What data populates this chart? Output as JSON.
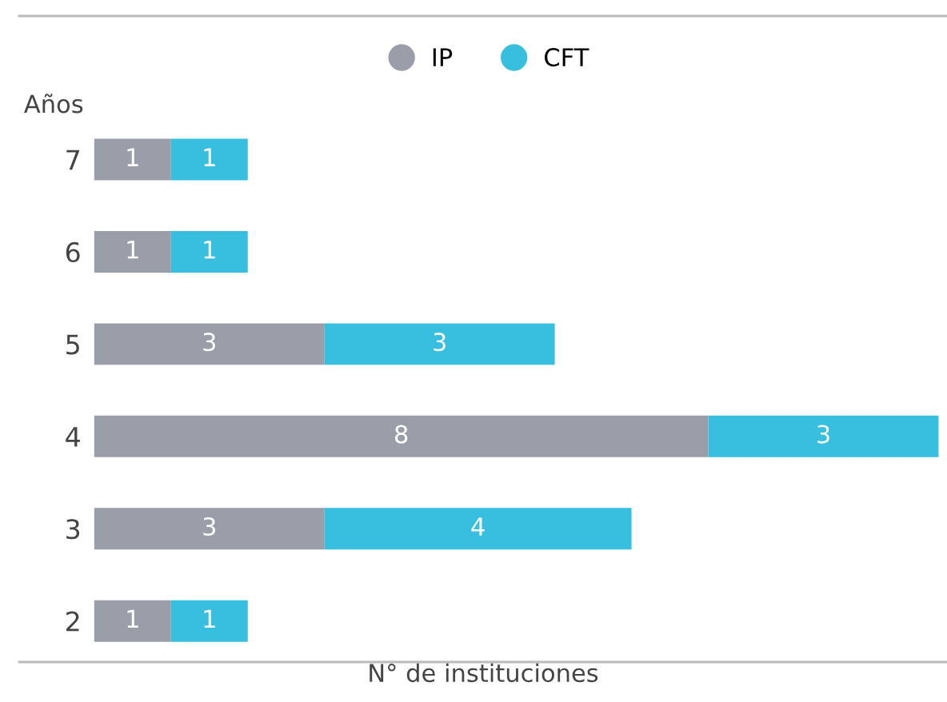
{
  "chart_data": {
    "type": "bar",
    "orientation": "horizontal",
    "stacked": true,
    "ylabel": "Años",
    "xlabel": "N° de instituciones",
    "categories": [
      "7",
      "6",
      "5",
      "4",
      "3",
      "2"
    ],
    "series": [
      {
        "name": "IP",
        "color": "#9a9ea8",
        "values": [
          1,
          1,
          3,
          8,
          3,
          1
        ]
      },
      {
        "name": "CFT",
        "color": "#38bfe0",
        "values": [
          1,
          1,
          3,
          3,
          4,
          1
        ]
      }
    ],
    "data_labels": true,
    "legend": "top",
    "grid": false,
    "tick_labels": "y"
  }
}
